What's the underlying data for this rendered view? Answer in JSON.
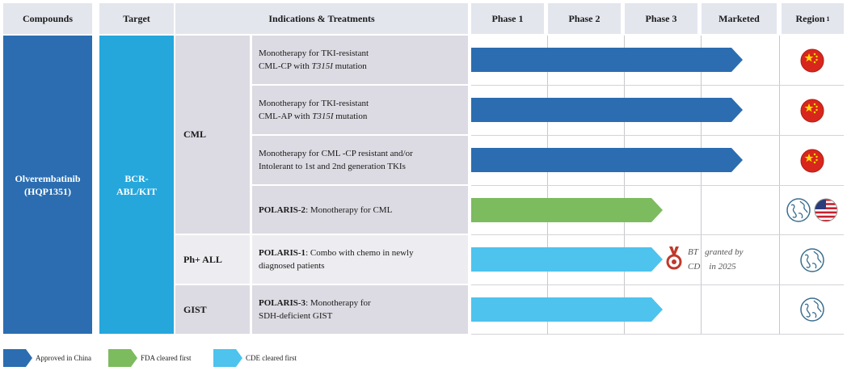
{
  "header": {
    "compounds": "Compounds",
    "target": "Target",
    "indications": "Indications & Treatments",
    "phase1": "Phase 1",
    "phase2": "Phase 2",
    "phase3": "Phase 3",
    "marketed": "Marketed",
    "region": "Region",
    "region_sup": "1"
  },
  "compound": {
    "name": "Olverembatinib",
    "code": "(HQP1351)"
  },
  "target": {
    "line1": "BCR-",
    "line2": "ABL/KIT"
  },
  "diseases": {
    "cml": "CML",
    "phall": "Ph+ ALL",
    "gist": "GIST"
  },
  "rows": [
    {
      "prefix": "",
      "line1": "Monotherapy for TKI-resistant",
      "line2_pre": "CML-CP with ",
      "line2_it": "T315I",
      "line2_post": " mutation",
      "stage": "Marketed",
      "status": "Approved in China",
      "region": [
        "china-flag-icon"
      ]
    },
    {
      "prefix": "",
      "line1": "Monotherapy for TKI-resistant",
      "line2_pre": "CML-AP with ",
      "line2_it": "T315I",
      "line2_post": " mutation",
      "stage": "Marketed",
      "status": "Approved in China",
      "region": [
        "china-flag-icon"
      ]
    },
    {
      "prefix": "",
      "line1": "Monotherapy for CML  -CP resistant and/or",
      "line2_pre": "Intolerant to 1st and 2nd generation TKIs",
      "line2_it": "",
      "line2_post": "",
      "stage": "Marketed",
      "status": "Approved in China",
      "region": [
        "china-flag-icon"
      ]
    },
    {
      "prefix": "POLARIS-2",
      "line1": ":  Monotherapy for CML",
      "line2_pre": "",
      "line2_it": "",
      "line2_post": "",
      "stage": "Phase 3",
      "status": "FDA cleared first",
      "region": [
        "globe-icon",
        "usa-flag-icon"
      ]
    },
    {
      "prefix": "POLARIS-1",
      "line1": ": Combo with chemo in newly",
      "line2_pre": "diagnosed patients",
      "line2_it": "",
      "line2_post": "",
      "stage": "Phase 3",
      "status": "CDE cleared first",
      "region": [
        "globe-icon"
      ]
    },
    {
      "prefix": "POLARIS-3",
      "line1": ": Monotherapy for",
      "line2_pre": "SDH-deficient GIST",
      "line2_it": "",
      "line2_post": "",
      "stage": "Phase 3",
      "status": "CDE cleared first",
      "region": [
        "globe-icon"
      ]
    }
  ],
  "bt_note": {
    "line1a": "BT",
    "line1b": "granted by",
    "line2a": "CD",
    "line2b": "in 2025"
  },
  "legend": [
    {
      "label": "Approved in China",
      "color": "#2b6db0"
    },
    {
      "label": "FDA cleared first",
      "color": "#7dbb5f"
    },
    {
      "label": "CDE cleared first",
      "color": "#4dc3ee"
    }
  ],
  "colors": {
    "approved": "#2b6db0",
    "fda": "#7dbb5f",
    "cde": "#4dc3ee",
    "compound_bg": "#2b6db0",
    "target_bg": "#25a7dc"
  }
}
